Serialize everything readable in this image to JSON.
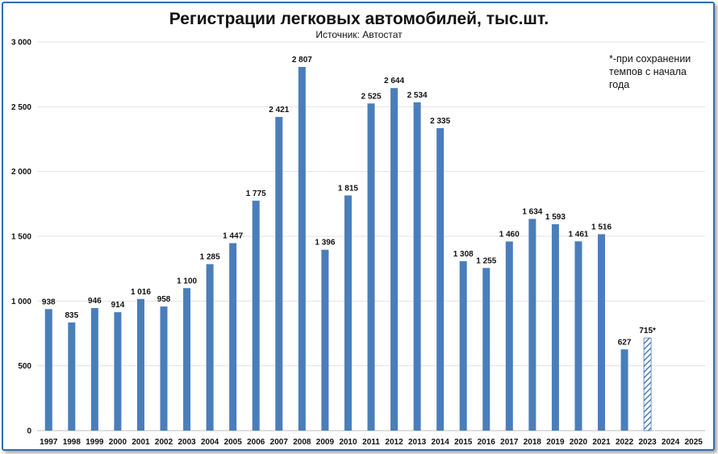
{
  "chart_data": {
    "type": "bar",
    "title": "Регистрации легковых автомобилей, тыс.шт.",
    "subtitle": "Источник: Автостат",
    "note": "*-при сохранении темпов с начала года",
    "xlabel": "",
    "ylabel": "",
    "ylim": [
      0,
      3000
    ],
    "yticks": [
      0,
      500,
      1000,
      1500,
      2000,
      2500,
      3000
    ],
    "ytick_labels": [
      "0",
      "500",
      "1 000",
      "1 500",
      "2 000",
      "2 500",
      "3 000"
    ],
    "grid": true,
    "bar_color": "#4a7ebb",
    "estimate_color": "#4a7ebb",
    "categories": [
      "1997",
      "1998",
      "1999",
      "2000",
      "2001",
      "2002",
      "2003",
      "2004",
      "2005",
      "2006",
      "2007",
      "2008",
      "2009",
      "2010",
      "2011",
      "2012",
      "2013",
      "2014",
      "2015",
      "2016",
      "2017",
      "2018",
      "2019",
      "2020",
      "2021",
      "2022",
      "2023",
      "2024",
      "2025"
    ],
    "values": [
      938,
      835,
      946,
      914,
      1016,
      958,
      1100,
      1285,
      1447,
      1775,
      2421,
      2807,
      1396,
      1815,
      2525,
      2644,
      2534,
      2335,
      1308,
      1255,
      1460,
      1634,
      1593,
      1461,
      1516,
      627,
      715,
      null,
      null
    ],
    "labels": [
      "938",
      "835",
      "946",
      "914",
      "1 016",
      "958",
      "1 100",
      "1 285",
      "1 447",
      "1 775",
      "2 421",
      "2 807",
      "1 396",
      "1 815",
      "2 525",
      "2 644",
      "2 534",
      "2 335",
      "1 308",
      "1 255",
      "1 460",
      "1 634",
      "1 593",
      "1 461",
      "1 516",
      "627",
      "715*",
      "",
      ""
    ],
    "estimated": [
      false,
      false,
      false,
      false,
      false,
      false,
      false,
      false,
      false,
      false,
      false,
      false,
      false,
      false,
      false,
      false,
      false,
      false,
      false,
      false,
      false,
      false,
      false,
      false,
      false,
      false,
      true,
      false,
      false
    ]
  }
}
